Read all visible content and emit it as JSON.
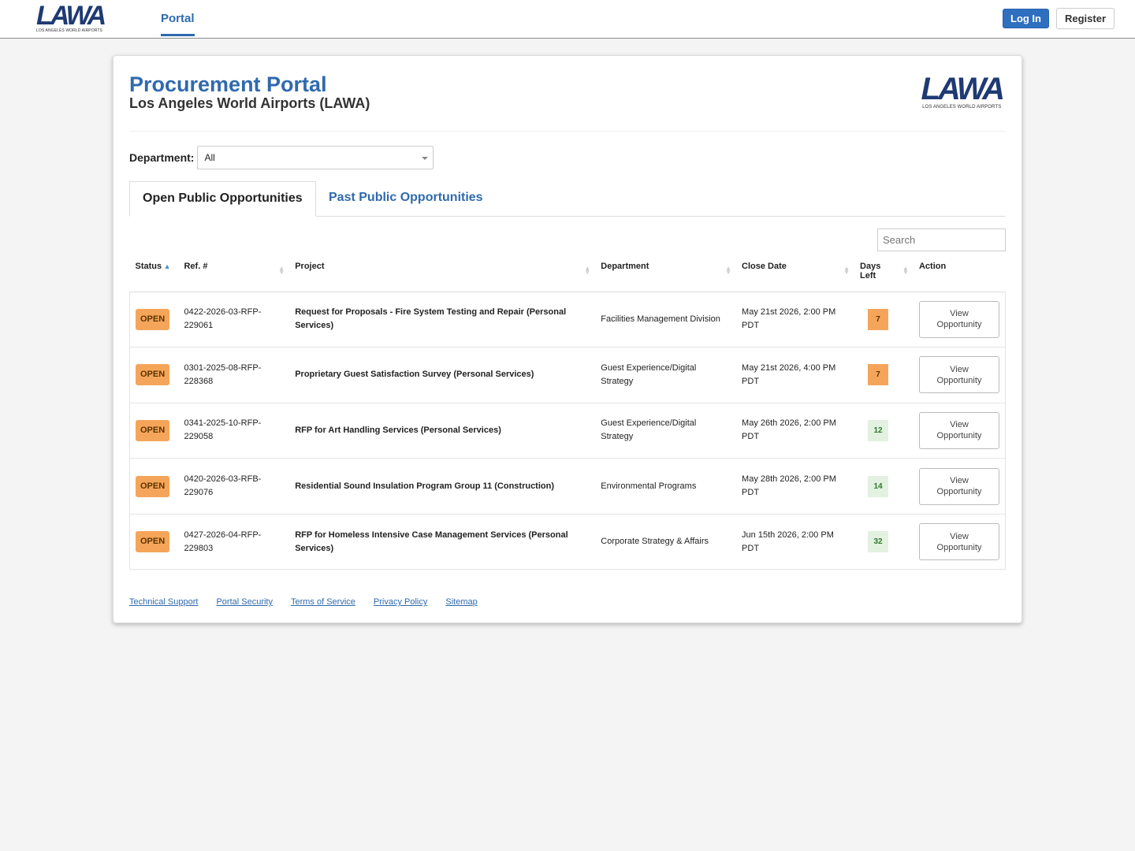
{
  "nav": {
    "logo": "LAWA",
    "logo_sub": "LOS ANGELES WORLD AIRPORTS",
    "tab": "Portal",
    "login": "Log In",
    "register": "Register"
  },
  "header": {
    "title": "Procurement Portal",
    "subtitle": "Los Angeles World Airports (LAWA)",
    "logo": "LAWA",
    "logo_sub": "LOS ANGELES WORLD AIRPORTS"
  },
  "filter": {
    "label": "Department:",
    "value": "All"
  },
  "tabs": [
    "Open Public Opportunities",
    "Past Public Opportunities"
  ],
  "search": {
    "placeholder": "Search"
  },
  "table": {
    "columns": [
      "Status",
      "Ref. #",
      "Project",
      "Department",
      "Close Date",
      "Days Left",
      "Action"
    ],
    "rows": [
      {
        "status": "OPEN",
        "ref": "0422-2026-03-RFP-229061",
        "project": "Request for Proposals - Fire System Testing and Repair (Personal Services)",
        "department": "Facilities Management Division",
        "close_date": "May 21st 2026, 2:00 PM PDT",
        "days_left": 7,
        "days_left_color": "orange",
        "action": "View Opportunity"
      },
      {
        "status": "OPEN",
        "ref": "0301-2025-08-RFP-228368",
        "project": "Proprietary Guest Satisfaction Survey (Personal Services)",
        "department": "Guest Experience/Digital Strategy",
        "close_date": "May 21st 2026, 4:00 PM PDT",
        "days_left": 7,
        "days_left_color": "orange",
        "action": "View Opportunity"
      },
      {
        "status": "OPEN",
        "ref": "0341-2025-10-RFP-229058",
        "project": "RFP for Art Handling Services (Personal Services)",
        "department": "Guest Experience/Digital Strategy",
        "close_date": "May 26th 2026, 2:00 PM PDT",
        "days_left": 12,
        "days_left_color": "green",
        "action": "View Opportunity"
      },
      {
        "status": "OPEN",
        "ref": "0420-2026-03-RFB-229076",
        "project": "Residential Sound Insulation Program Group 11 (Construction)",
        "department": "Environmental Programs",
        "close_date": "May 28th 2026, 2:00 PM PDT",
        "days_left": 14,
        "days_left_color": "green",
        "action": "View Opportunity"
      },
      {
        "status": "OPEN",
        "ref": "0427-2026-04-RFP-229803",
        "project": "RFP for Homeless Intensive Case Management Services (Personal Services)",
        "department": "Corporate Strategy & Affairs",
        "close_date": "Jun 15th 2026, 2:00 PM PDT",
        "days_left": 32,
        "days_left_color": "green",
        "action": "View Opportunity"
      }
    ]
  },
  "footer": {
    "links": [
      "Technical Support",
      "Portal Security",
      "Terms of Service",
      "Privacy Policy",
      "Sitemap"
    ]
  }
}
